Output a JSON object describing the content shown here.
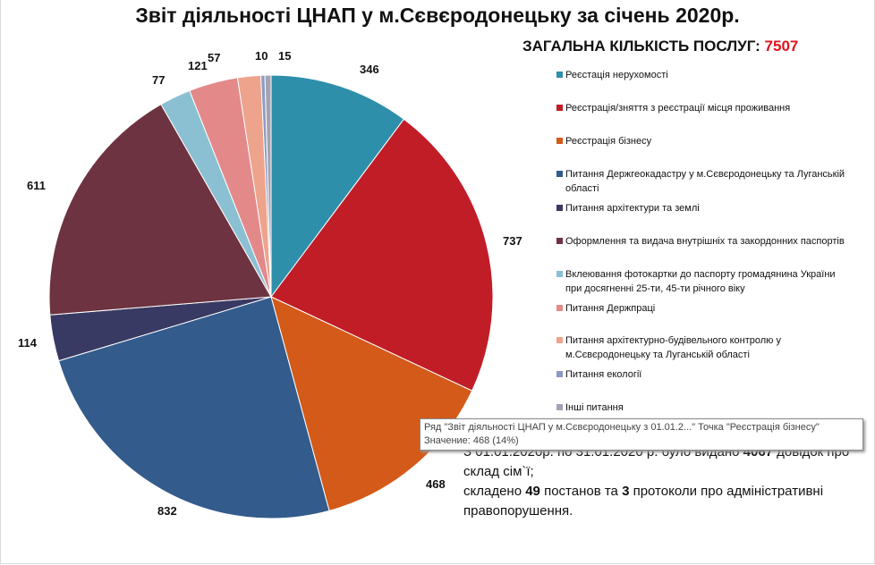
{
  "chart_data": {
    "type": "pie",
    "title": "Звіт діяльності ЦНАП у м.Сєвєродонецьку  за січень 2020р.",
    "categories": [
      "Реєстація нерухомості",
      "Реєстрація/зняття з реєстрації місця проживання",
      "Реєстрація бізнесу",
      "Питання Держгеокадастру  у м.Сєвєродонецьку  та Луганській області",
      "Питання архітектури та землі",
      "Оформлення та видача  внутрішніх та закордонних паспортів",
      "Вклеювання фотокартки до паспорту громадянина України при досягненні 25-ти, 45-ти річного віку",
      "Питання Держпраці",
      "Питання архітектурно-будівельного  контролю у м.Сєвєродонецьку  та Луганській області",
      "Питання екології",
      "Інші питання"
    ],
    "values": [
      346,
      737,
      468,
      832,
      114,
      611,
      77,
      121,
      57,
      10,
      15
    ],
    "colors": [
      "#2e8fab",
      "#c11d27",
      "#d35a19",
      "#335b8c",
      "#393a63",
      "#6d3340",
      "#8bc0d2",
      "#e3898a",
      "#eea38c",
      "#8d9bc2",
      "#a3a3b3"
    ],
    "legend_position": "right"
  },
  "total": {
    "label": "ЗАГАЛЬНА КІЛЬКІСТЬ ПОСЛУГ: ",
    "value": "7507"
  },
  "tooltip": {
    "line1": "Ряд \"Звіт діяльності ЦНАП у м.Сєвєродонецьку  з 01.01.2...\" Точка \"Реєстрація бізнесу\"",
    "line2": "Значение: 468 (14%)"
  },
  "note": {
    "p1a": "З 01.01.2020р. по 31.01.2020 р. було видано ",
    "p1b": "4067",
    "p1c": " довідок про склад сім`ї;",
    "p2a": "складено  ",
    "p2b": "49",
    "p2c": " постанов та ",
    "p2d": "3",
    "p2e": " протоколи про адміністративні",
    "p3": " правопорушення."
  }
}
